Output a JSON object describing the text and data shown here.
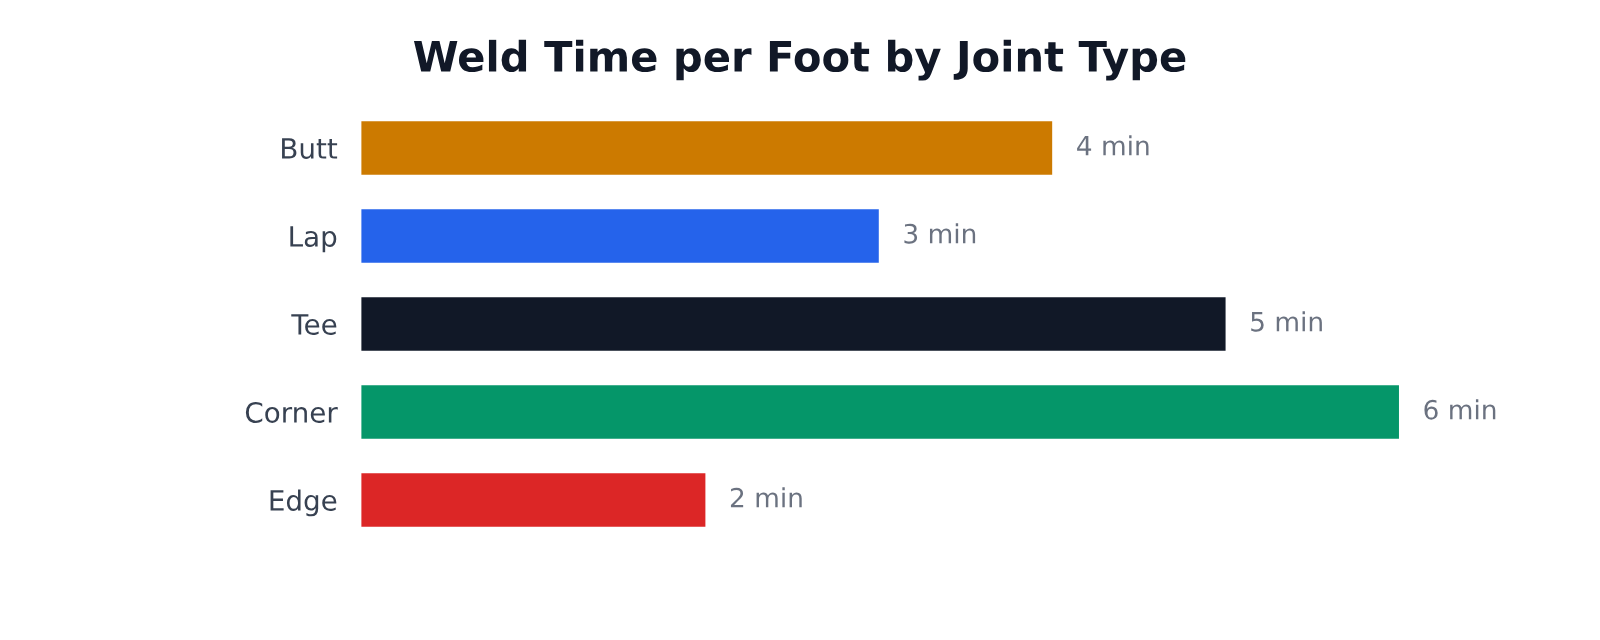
{
  "chart_data": {
    "type": "bar",
    "orientation": "horizontal",
    "title": "Weld Time per Foot by Joint Type",
    "categories": [
      "Butt",
      "Lap",
      "Tee",
      "Corner",
      "Edge"
    ],
    "values": [
      4,
      3,
      5,
      6,
      2
    ],
    "colors": [
      "#cc7a00",
      "#2563eb",
      "#111827",
      "#059669",
      "#dc2626"
    ],
    "value_labels": [
      "4 min",
      "3 min",
      "5 min",
      "6 min",
      "2 min"
    ],
    "grid": false,
    "legend": false,
    "tick_labels": "y"
  }
}
